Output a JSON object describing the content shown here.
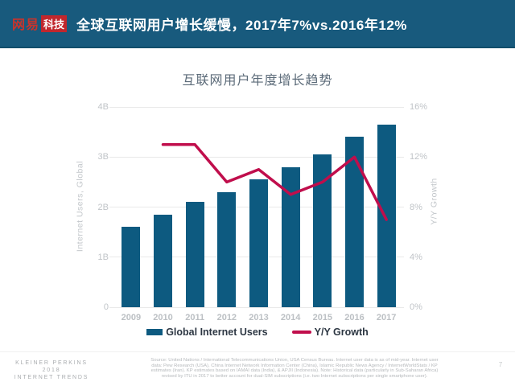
{
  "header": {
    "logo_netease": "网易",
    "logo_tech": "科技",
    "title": "全球互联网用户增长缓慢，2017年7%vs.2016年12%"
  },
  "chart_data": {
    "type": "bar",
    "subtype": "bar+line combo",
    "title": "互联网用户年度增长趋势",
    "categories": [
      "2009",
      "2010",
      "2011",
      "2012",
      "2013",
      "2014",
      "2015",
      "2016",
      "2017"
    ],
    "series": [
      {
        "name": "Global Internet Users",
        "type": "bar",
        "axis": "left",
        "unit": "billions",
        "color": "#0d5a80",
        "values": [
          1.6,
          1.85,
          2.1,
          2.3,
          2.55,
          2.8,
          3.05,
          3.4,
          3.65
        ]
      },
      {
        "name": "Y/Y Growth",
        "type": "line",
        "axis": "right",
        "unit": "percent",
        "color": "#c00e4c",
        "values": [
          null,
          13,
          13,
          10,
          11,
          9,
          10,
          12,
          7
        ]
      }
    ],
    "left_axis": {
      "title": "Internet Users, Global",
      "ticks": [
        "0",
        "1B",
        "2B",
        "3B",
        "4B"
      ],
      "range": [
        0,
        4
      ]
    },
    "right_axis": {
      "title": "Y/Y Growth",
      "ticks": [
        "0%",
        "4%",
        "8%",
        "12%",
        "16%"
      ],
      "range": [
        0,
        16
      ]
    },
    "grid": true,
    "legend_position": "bottom"
  },
  "legend": {
    "items": [
      {
        "label": "Global Internet Users",
        "swatch": "bar"
      },
      {
        "label": "Y/Y Growth",
        "swatch": "line"
      }
    ]
  },
  "footer": {
    "brand": [
      "KLEINER PERKINS",
      "2018",
      "INTERNET TRENDS"
    ],
    "source": "Source: United Nations / International Telecommunications Union, USA Census Bureau. Internet user data is as of mid-year. Internet user data: Pew Research (USA), China Internet Network Information Center (China), Islamic Republic News Agency / InternetWorldStats / KP estimates (Iran). KP estimates based on IAMAI data (India), & APJII (Indonesia). Note: Historical data (particularly in Sub-Saharan Africa) revised by ITU in 2017 to better account for dual-SIM subscriptions (i.e. two Internet subscriptions per single smartphone user).",
    "page_number": "7"
  },
  "colors": {
    "header_bg": "#185a7d",
    "header_border": "#124e6b",
    "logo_red": "#c1272d",
    "bar": "#0d5a80",
    "line": "#c00e4c",
    "chart_title_text": "#5c6b79",
    "axis_text": "#c0c4c8",
    "legend_text": "#2d3743",
    "grid": "#e9e9e9",
    "footer_text": "#a9acaf"
  }
}
